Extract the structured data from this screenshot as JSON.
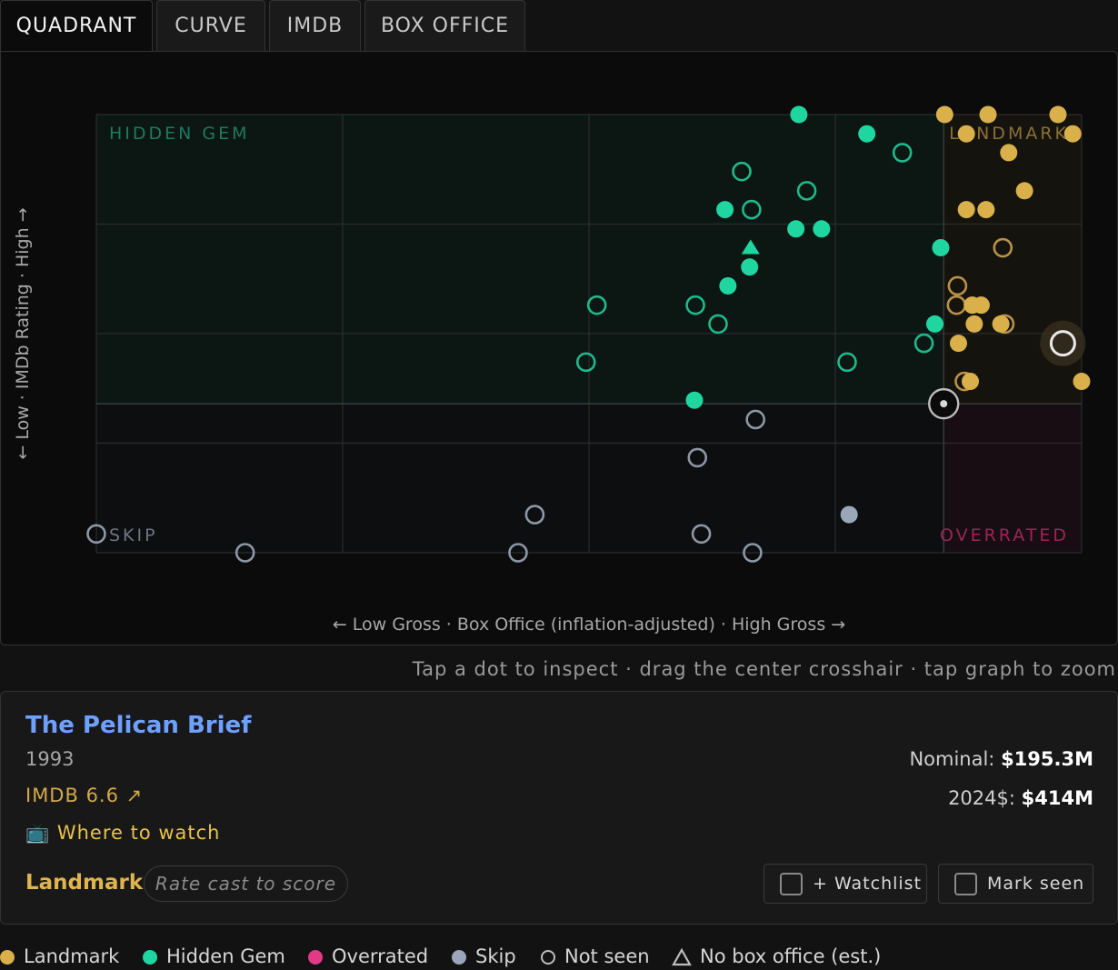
{
  "tabs": [
    "QUADRANT",
    "CURVE",
    "IMDB",
    "BOX OFFICE"
  ],
  "colors": {
    "landmark": "#d9b04a",
    "hidden_gem": "#1fd6a0",
    "overrated": "#e23a86",
    "skip": "#9aa7bb",
    "hidden_gem_outline": "#1fb88a",
    "landmark_outline": "#b8924a",
    "skip_outline": "#8d97a6"
  },
  "chart_data": {
    "type": "scatter",
    "xlabel": "← Low Gross · Box Office (inflation-adjusted) · High Gross →",
    "ylabel": "← Low · IMDb Rating · High →",
    "xlim": [
      0,
      100
    ],
    "ylim": [
      0,
      100
    ],
    "grid": true,
    "quadrant_labels": {
      "top_left": "HIDDEN GEM",
      "top_right": "LANDMARK",
      "bottom_left": "SKIP",
      "bottom_right": "OVERRATED"
    },
    "points": [
      {
        "x": 71.3,
        "y": 100,
        "category": "hidden_gem",
        "seen": true,
        "shape": "circle"
      },
      {
        "x": 78.2,
        "y": 95.6,
        "category": "hidden_gem",
        "seen": true,
        "shape": "circle"
      },
      {
        "x": 81.8,
        "y": 91.3,
        "category": "hidden_gem",
        "seen": false,
        "shape": "circle"
      },
      {
        "x": 65.5,
        "y": 87.0,
        "category": "hidden_gem",
        "seen": false,
        "shape": "circle"
      },
      {
        "x": 72.1,
        "y": 82.6,
        "category": "hidden_gem",
        "seen": false,
        "shape": "circle"
      },
      {
        "x": 63.8,
        "y": 78.3,
        "category": "hidden_gem",
        "seen": true,
        "shape": "circle"
      },
      {
        "x": 66.5,
        "y": 78.3,
        "category": "hidden_gem",
        "seen": false,
        "shape": "circle"
      },
      {
        "x": 71.0,
        "y": 73.9,
        "category": "hidden_gem",
        "seen": true,
        "shape": "circle"
      },
      {
        "x": 73.6,
        "y": 73.9,
        "category": "hidden_gem",
        "seen": true,
        "shape": "circle"
      },
      {
        "x": 66.4,
        "y": 69.6,
        "category": "hidden_gem",
        "seen": true,
        "shape": "triangle"
      },
      {
        "x": 85.7,
        "y": 69.6,
        "category": "hidden_gem",
        "seen": true,
        "shape": "circle"
      },
      {
        "x": 66.3,
        "y": 65.2,
        "category": "hidden_gem",
        "seen": true,
        "shape": "circle"
      },
      {
        "x": 64.1,
        "y": 60.9,
        "category": "hidden_gem",
        "seen": true,
        "shape": "circle"
      },
      {
        "x": 50.8,
        "y": 56.5,
        "category": "hidden_gem",
        "seen": false,
        "shape": "circle"
      },
      {
        "x": 60.8,
        "y": 56.5,
        "category": "hidden_gem",
        "seen": false,
        "shape": "circle"
      },
      {
        "x": 63.1,
        "y": 52.2,
        "category": "hidden_gem",
        "seen": false,
        "shape": "circle"
      },
      {
        "x": 85.1,
        "y": 52.2,
        "category": "hidden_gem",
        "seen": true,
        "shape": "circle"
      },
      {
        "x": 84.0,
        "y": 47.8,
        "category": "hidden_gem",
        "seen": false,
        "shape": "circle"
      },
      {
        "x": 49.7,
        "y": 43.5,
        "category": "hidden_gem",
        "seen": false,
        "shape": "circle"
      },
      {
        "x": 76.2,
        "y": 43.5,
        "category": "hidden_gem",
        "seen": false,
        "shape": "circle"
      },
      {
        "x": 60.7,
        "y": 34.8,
        "category": "hidden_gem",
        "seen": true,
        "shape": "circle"
      },
      {
        "x": 86.1,
        "y": 100,
        "category": "landmark",
        "seen": true,
        "shape": "circle"
      },
      {
        "x": 90.5,
        "y": 100,
        "category": "landmark",
        "seen": true,
        "shape": "circle"
      },
      {
        "x": 97.6,
        "y": 100,
        "category": "landmark",
        "seen": true,
        "shape": "circle"
      },
      {
        "x": 88.3,
        "y": 95.6,
        "category": "landmark",
        "seen": true,
        "shape": "circle"
      },
      {
        "x": 99.1,
        "y": 95.6,
        "category": "landmark",
        "seen": true,
        "shape": "circle"
      },
      {
        "x": 92.6,
        "y": 91.3,
        "category": "landmark",
        "seen": true,
        "shape": "circle"
      },
      {
        "x": 94.2,
        "y": 82.6,
        "category": "landmark",
        "seen": true,
        "shape": "circle"
      },
      {
        "x": 88.3,
        "y": 78.3,
        "category": "landmark",
        "seen": true,
        "shape": "circle"
      },
      {
        "x": 90.3,
        "y": 78.3,
        "category": "landmark",
        "seen": true,
        "shape": "circle"
      },
      {
        "x": 92.0,
        "y": 69.6,
        "category": "landmark",
        "seen": false,
        "shape": "circle"
      },
      {
        "x": 87.4,
        "y": 60.9,
        "category": "landmark",
        "seen": false,
        "shape": "circle"
      },
      {
        "x": 87.3,
        "y": 56.5,
        "category": "landmark",
        "seen": false,
        "shape": "circle"
      },
      {
        "x": 88.9,
        "y": 56.5,
        "category": "landmark",
        "seen": true,
        "shape": "circle"
      },
      {
        "x": 89.8,
        "y": 56.5,
        "category": "landmark",
        "seen": true,
        "shape": "circle"
      },
      {
        "x": 89.1,
        "y": 52.2,
        "category": "landmark",
        "seen": true,
        "shape": "circle"
      },
      {
        "x": 92.2,
        "y": 52.2,
        "category": "landmark",
        "seen": false,
        "shape": "circle"
      },
      {
        "x": 91.8,
        "y": 52.2,
        "category": "landmark",
        "seen": true,
        "shape": "circle"
      },
      {
        "x": 87.5,
        "y": 47.8,
        "category": "landmark",
        "seen": true,
        "shape": "circle"
      },
      {
        "x": 88.1,
        "y": 39.1,
        "category": "landmark",
        "seen": false,
        "shape": "circle"
      },
      {
        "x": 88.7,
        "y": 39.1,
        "category": "landmark",
        "seen": true,
        "shape": "circle"
      },
      {
        "x": 100,
        "y": 39.1,
        "category": "landmark",
        "seen": true,
        "shape": "circle"
      },
      {
        "x": 98.1,
        "y": 47.8,
        "category": "landmark",
        "seen": false,
        "shape": "circle",
        "highlighted": true
      },
      {
        "x": 66.9,
        "y": 30.4,
        "category": "skip",
        "seen": false,
        "shape": "circle"
      },
      {
        "x": 61.0,
        "y": 21.7,
        "category": "skip",
        "seen": false,
        "shape": "circle"
      },
      {
        "x": 44.5,
        "y": 8.7,
        "category": "skip",
        "seen": false,
        "shape": "circle"
      },
      {
        "x": 76.4,
        "y": 8.7,
        "category": "skip",
        "seen": true,
        "shape": "circle"
      },
      {
        "x": 0,
        "y": 4.3,
        "category": "skip",
        "seen": false,
        "shape": "circle"
      },
      {
        "x": 61.4,
        "y": 4.3,
        "category": "skip",
        "seen": false,
        "shape": "circle"
      },
      {
        "x": 15.1,
        "y": 0,
        "category": "skip",
        "seen": false,
        "shape": "circle"
      },
      {
        "x": 42.8,
        "y": 0,
        "category": "skip",
        "seen": false,
        "shape": "circle"
      },
      {
        "x": 66.6,
        "y": 0,
        "category": "skip",
        "seen": false,
        "shape": "circle"
      }
    ],
    "crosshair": {
      "x": 86.0,
      "y": 34.0
    }
  },
  "hint": "Tap a dot to inspect · drag the center crosshair · tap graph to zoom",
  "movie": {
    "title": "The Pelican Brief",
    "year": "1993",
    "imdb": "IMDB 6.6 ↗",
    "where_icon": "📺",
    "where_to_watch": "Where to watch",
    "category": "Landmark",
    "rate_cast": "Rate cast to score",
    "nominal_label": "Nominal:",
    "nominal_value": "$195.3M",
    "real_label": "2024$:",
    "real_value": "$414M",
    "watchlist_label": "+ Watchlist",
    "mark_seen_label": "Mark seen"
  },
  "legend": [
    {
      "label": "Landmark",
      "color": "#d9b04a",
      "icon": "filled-dot"
    },
    {
      "label": "Hidden Gem",
      "color": "#1fd6a0",
      "icon": "filled-dot"
    },
    {
      "label": "Overrated",
      "color": "#e23a86",
      "icon": "filled-dot"
    },
    {
      "label": "Skip",
      "color": "#9aa7bb",
      "icon": "filled-dot"
    },
    {
      "label": "Not seen",
      "color": "#bdbdbd",
      "icon": "hollow-dot"
    },
    {
      "label": "No box office (est.)",
      "color": "#bdbdbd",
      "icon": "triangle"
    }
  ]
}
